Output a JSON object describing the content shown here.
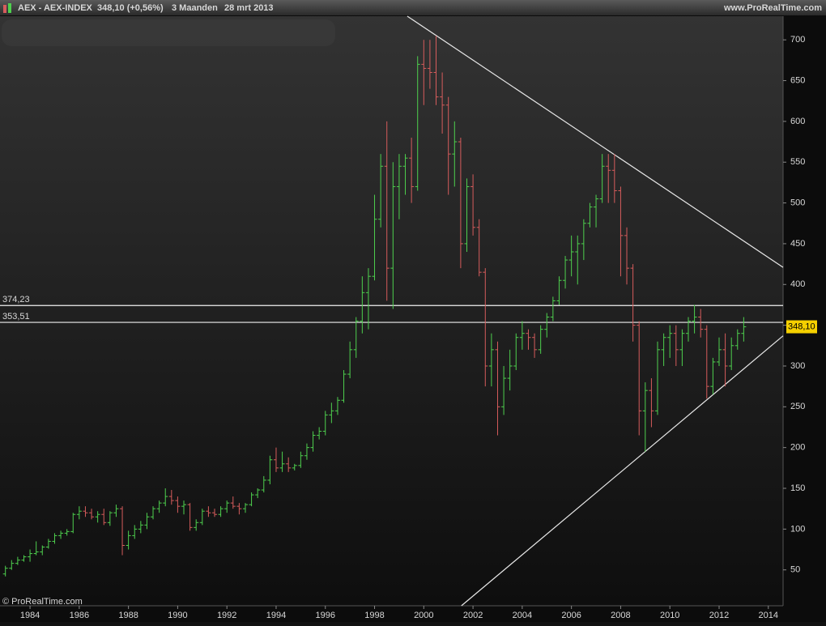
{
  "header": {
    "symbol": "AEX - AEX-INDEX",
    "quote": "348,10 (+0,56%)",
    "period": "3 Maanden",
    "date": "28 mrt 2013",
    "site": "www.ProRealTime.com"
  },
  "footer": {
    "copyright": "© ProRealTime.com"
  },
  "chart_data": {
    "type": "ohlc",
    "x": [
      1983,
      1983.25,
      1983.5,
      1983.75,
      1984,
      1984.25,
      1984.5,
      1984.75,
      1985,
      1985.25,
      1985.5,
      1985.75,
      1986,
      1986.25,
      1986.5,
      1986.75,
      1987,
      1987.25,
      1987.5,
      1987.75,
      1988,
      1988.25,
      1988.5,
      1988.75,
      1989,
      1989.25,
      1989.5,
      1989.75,
      1990,
      1990.25,
      1990.5,
      1990.75,
      1991,
      1991.25,
      1991.5,
      1991.75,
      1992,
      1992.25,
      1992.5,
      1992.75,
      1993,
      1993.25,
      1993.5,
      1993.75,
      1994,
      1994.25,
      1994.5,
      1994.75,
      1995,
      1995.25,
      1995.5,
      1995.75,
      1996,
      1996.25,
      1996.5,
      1996.75,
      1997,
      1997.25,
      1997.5,
      1997.75,
      1998,
      1998.25,
      1998.5,
      1998.75,
      1999,
      1999.25,
      1999.5,
      1999.75,
      2000,
      2000.25,
      2000.5,
      2000.75,
      2001,
      2001.25,
      2001.5,
      2001.75,
      2002,
      2002.25,
      2002.5,
      2002.75,
      2003,
      2003.25,
      2003.5,
      2003.75,
      2004,
      2004.25,
      2004.5,
      2004.75,
      2005,
      2005.25,
      2005.5,
      2005.75,
      2006,
      2006.25,
      2006.5,
      2006.75,
      2007,
      2007.25,
      2007.5,
      2007.75,
      2008,
      2008.25,
      2008.5,
      2008.75,
      2009,
      2009.25,
      2009.5,
      2009.75,
      2010,
      2010.25,
      2010.5,
      2010.75,
      2011,
      2011.25,
      2011.5,
      2011.75,
      2012,
      2012.25,
      2012.5,
      2012.75,
      2013
    ],
    "open": [
      45,
      52,
      58,
      62,
      66,
      70,
      72,
      78,
      85,
      92,
      95,
      97,
      118,
      122,
      120,
      115,
      118,
      108,
      120,
      125,
      80,
      92,
      100,
      105,
      115,
      125,
      132,
      140,
      135,
      128,
      130,
      102,
      108,
      122,
      120,
      118,
      125,
      132,
      128,
      125,
      130,
      142,
      148,
      160,
      185,
      175,
      180,
      175,
      178,
      190,
      200,
      215,
      220,
      240,
      245,
      258,
      290,
      320,
      355,
      390,
      410,
      480,
      545,
      420,
      520,
      545,
      555,
      520,
      670,
      665,
      660,
      630,
      620,
      560,
      575,
      450,
      520,
      470,
      415,
      300,
      320,
      250,
      285,
      300,
      335,
      340,
      335,
      320,
      345,
      360,
      380,
      405,
      430,
      440,
      450,
      475,
      495,
      505,
      545,
      540,
      515,
      460,
      420,
      350,
      245,
      270,
      245,
      320,
      335,
      340,
      320,
      340,
      355,
      360,
      345,
      275,
      305,
      320,
      300,
      325,
      340
    ],
    "high": [
      55,
      62,
      66,
      68,
      75,
      85,
      80,
      88,
      95,
      98,
      100,
      120,
      128,
      128,
      125,
      122,
      125,
      122,
      130,
      128,
      98,
      105,
      110,
      120,
      128,
      135,
      150,
      148,
      140,
      135,
      132,
      112,
      125,
      128,
      125,
      128,
      135,
      140,
      132,
      132,
      145,
      150,
      165,
      190,
      200,
      195,
      188,
      180,
      195,
      205,
      220,
      225,
      245,
      255,
      262,
      295,
      330,
      360,
      410,
      420,
      510,
      560,
      600,
      550,
      560,
      560,
      580,
      680,
      700,
      700,
      705,
      660,
      630,
      600,
      580,
      530,
      535,
      480,
      420,
      340,
      330,
      300,
      320,
      340,
      355,
      345,
      340,
      350,
      365,
      385,
      410,
      435,
      460,
      460,
      480,
      500,
      510,
      560,
      560,
      560,
      520,
      470,
      425,
      355,
      280,
      285,
      330,
      340,
      350,
      350,
      345,
      360,
      375,
      370,
      350,
      310,
      335,
      340,
      335,
      345,
      360
    ],
    "low": [
      42,
      50,
      56,
      60,
      60,
      68,
      68,
      76,
      82,
      88,
      92,
      95,
      112,
      115,
      112,
      108,
      105,
      104,
      115,
      68,
      75,
      88,
      95,
      100,
      112,
      120,
      128,
      130,
      120,
      118,
      98,
      98,
      105,
      115,
      115,
      115,
      120,
      125,
      118,
      120,
      128,
      138,
      145,
      155,
      170,
      170,
      170,
      172,
      175,
      185,
      195,
      210,
      215,
      230,
      240,
      255,
      285,
      310,
      340,
      345,
      405,
      470,
      380,
      370,
      480,
      510,
      500,
      515,
      620,
      640,
      620,
      585,
      510,
      520,
      420,
      440,
      460,
      410,
      275,
      275,
      215,
      240,
      270,
      295,
      320,
      320,
      310,
      315,
      335,
      355,
      375,
      395,
      410,
      400,
      430,
      470,
      470,
      500,
      500,
      500,
      410,
      400,
      330,
      215,
      195,
      225,
      240,
      300,
      310,
      300,
      300,
      330,
      340,
      335,
      260,
      265,
      300,
      275,
      295,
      320,
      330
    ],
    "close": [
      52,
      58,
      62,
      66,
      70,
      72,
      78,
      85,
      92,
      95,
      97,
      118,
      122,
      120,
      115,
      118,
      108,
      120,
      125,
      80,
      92,
      100,
      105,
      115,
      125,
      132,
      140,
      135,
      128,
      130,
      102,
      108,
      122,
      120,
      118,
      125,
      132,
      128,
      125,
      130,
      142,
      148,
      160,
      185,
      175,
      180,
      175,
      178,
      190,
      200,
      215,
      220,
      240,
      245,
      258,
      290,
      320,
      355,
      390,
      410,
      480,
      545,
      420,
      520,
      545,
      555,
      520,
      670,
      665,
      660,
      630,
      620,
      560,
      575,
      450,
      520,
      470,
      415,
      300,
      320,
      250,
      285,
      300,
      335,
      340,
      335,
      320,
      345,
      360,
      380,
      405,
      430,
      440,
      450,
      475,
      495,
      505,
      545,
      540,
      515,
      460,
      420,
      350,
      245,
      270,
      245,
      320,
      335,
      340,
      320,
      340,
      355,
      360,
      345,
      275,
      305,
      320,
      300,
      325,
      340,
      348.1
    ],
    "up_color": "#4ed04e",
    "down_color": "#d65c5c",
    "xlim": [
      1982.78,
      2014.6
    ],
    "xticks": [
      1984,
      1986,
      1988,
      1990,
      1992,
      1994,
      1996,
      1998,
      2000,
      2002,
      2004,
      2006,
      2008,
      2010,
      2012,
      2014
    ],
    "ylim": [
      6,
      729
    ],
    "yticks": [
      50,
      100,
      150,
      200,
      250,
      300,
      350,
      400,
      450,
      500,
      550,
      600,
      650,
      700
    ],
    "hlines": [
      {
        "value": 374.23,
        "label": "374,23"
      },
      {
        "value": 353.51,
        "label": "353,51"
      }
    ],
    "last_price": {
      "value": 348.1,
      "label": "348,10"
    },
    "trendlines": [
      {
        "x": [
          1999.33,
          2014.6
        ],
        "y": [
          729,
          421
        ]
      },
      {
        "x": [
          2001.53,
          2014.6
        ],
        "y": [
          6,
          337
        ]
      }
    ]
  }
}
